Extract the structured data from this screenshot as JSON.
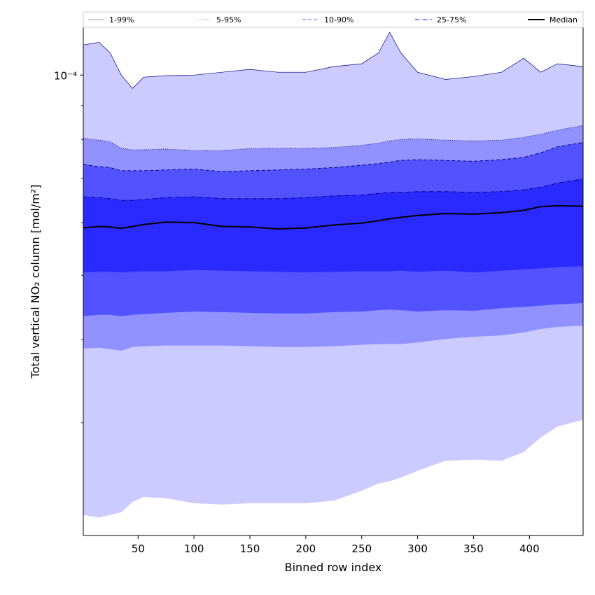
{
  "chart_data": {
    "type": "area",
    "xlabel": "Binned row index",
    "ylabel": "Total vertical NO₂ column [mol/m²]",
    "xlim": [
      1,
      448
    ],
    "ylim": [
      2.03e-05,
      0.000118
    ],
    "yscale": "log",
    "xticks": [
      50,
      100,
      150,
      200,
      250,
      300,
      350,
      400
    ],
    "yticks": [
      {
        "value": 0.0001,
        "label": "10⁻⁴"
      }
    ],
    "yticks_minor": [
      3e-05,
      4e-05,
      5e-05,
      6e-05,
      7e-05,
      8e-05,
      9e-05
    ],
    "legend_position": "top",
    "x": [
      1,
      15,
      25,
      35,
      45,
      55,
      75,
      100,
      125,
      150,
      175,
      200,
      225,
      250,
      265,
      275,
      285,
      300,
      325,
      350,
      375,
      395,
      410,
      425,
      448
    ],
    "bands": [
      {
        "name": "1-99%",
        "color": "#cccbff",
        "edge_color": "#000080",
        "edge_style": "solid",
        "lower": [
          2.18e-05,
          2.16e-05,
          2.18e-05,
          2.2e-05,
          2.28e-05,
          2.32e-05,
          2.31e-05,
          2.27e-05,
          2.26e-05,
          2.27e-05,
          2.27e-05,
          2.27e-05,
          2.29e-05,
          2.37e-05,
          2.43e-05,
          2.45e-05,
          2.48e-05,
          2.54e-05,
          2.63e-05,
          2.64e-05,
          2.63e-05,
          2.71e-05,
          2.85e-05,
          2.96e-05,
          3.03e-05
        ],
        "upper": [
          0.000111,
          0.000112,
          0.000108,
          0.0001,
          9.55e-05,
          9.93e-05,
          9.98e-05,
          0.0001,
          0.000101,
          0.000102,
          0.000101,
          0.000101,
          0.000103,
          0.000104,
          0.000108,
          0.000116,
          0.000108,
          0.000101,
          9.85e-05,
          9.95e-05,
          0.000101,
          0.000106,
          0.000101,
          0.000104,
          0.000103
        ]
      },
      {
        "name": "5-95%",
        "color": "#9191ff",
        "edge_color": "#000080",
        "edge_style": "dotted",
        "lower": [
          3.88e-05,
          3.89e-05,
          3.87e-05,
          3.85e-05,
          3.9e-05,
          3.91e-05,
          3.92e-05,
          3.92e-05,
          3.92e-05,
          3.91e-05,
          3.9e-05,
          3.9e-05,
          3.91e-05,
          3.93e-05,
          3.94e-05,
          3.94e-05,
          3.94e-05,
          3.96e-05,
          4.01e-05,
          4.04e-05,
          4.06e-05,
          4.1e-05,
          4.15e-05,
          4.18e-05,
          4.2e-05
        ],
        "upper": [
          8.04e-05,
          7.98e-05,
          7.94e-05,
          7.76e-05,
          7.72e-05,
          7.72e-05,
          7.74e-05,
          7.7e-05,
          7.7e-05,
          7.75e-05,
          7.76e-05,
          7.76e-05,
          7.78e-05,
          7.84e-05,
          7.9e-05,
          7.96e-05,
          8e-05,
          8.02e-05,
          7.98e-05,
          7.96e-05,
          7.98e-05,
          8.06e-05,
          8.15e-05,
          8.26e-05,
          8.4e-05
        ]
      },
      {
        "name": "10-90%",
        "color": "#5252ff",
        "edge_color": "#000080",
        "edge_style": "dashed",
        "lower": [
          4.34e-05,
          4.36e-05,
          4.36e-05,
          4.34e-05,
          4.36e-05,
          4.37e-05,
          4.39e-05,
          4.41e-05,
          4.4e-05,
          4.39e-05,
          4.38e-05,
          4.38e-05,
          4.4e-05,
          4.41e-05,
          4.43e-05,
          4.44e-05,
          4.43e-05,
          4.41e-05,
          4.43e-05,
          4.42e-05,
          4.46e-05,
          4.48e-05,
          4.5e-05,
          4.52e-05,
          4.54e-05
        ],
        "upper": [
          7.34e-05,
          7.28e-05,
          7.26e-05,
          7.18e-05,
          7.18e-05,
          7.18e-05,
          7.2e-05,
          7.22e-05,
          7.16e-05,
          7.18e-05,
          7.2e-05,
          7.22e-05,
          7.26e-05,
          7.32e-05,
          7.36e-05,
          7.4e-05,
          7.44e-05,
          7.46e-05,
          7.44e-05,
          7.42e-05,
          7.46e-05,
          7.52e-05,
          7.64e-05,
          7.8e-05,
          7.92e-05
        ]
      },
      {
        "name": "25-75%",
        "color": "#2a2aff",
        "edge_color": "#000080",
        "edge_style": "dashdot",
        "lower": [
          5.05e-05,
          5.06e-05,
          5.06e-05,
          5.05e-05,
          5.06e-05,
          5.07e-05,
          5.07e-05,
          5.09e-05,
          5.08e-05,
          5.07e-05,
          5.06e-05,
          5.05e-05,
          5.06e-05,
          5.07e-05,
          5.07e-05,
          5.07e-05,
          5.08e-05,
          5.06e-05,
          5.08e-05,
          5.05e-05,
          5.08e-05,
          5.1e-05,
          5.12e-05,
          5.14e-05,
          5.16e-05
        ],
        "upper": [
          6.56e-05,
          6.54e-05,
          6.52e-05,
          6.48e-05,
          6.48e-05,
          6.5e-05,
          6.54e-05,
          6.56e-05,
          6.52e-05,
          6.52e-05,
          6.52e-05,
          6.54e-05,
          6.58e-05,
          6.6e-05,
          6.64e-05,
          6.66e-05,
          6.66e-05,
          6.68e-05,
          6.68e-05,
          6.66e-05,
          6.68e-05,
          6.72e-05,
          6.78e-05,
          6.88e-05,
          6.98e-05
        ]
      }
    ],
    "median": {
      "name": "Median",
      "color": "#000000",
      "values": [
        5.89e-05,
        5.92e-05,
        5.91e-05,
        5.88e-05,
        5.92e-05,
        5.96e-05,
        6.01e-05,
        6e-05,
        5.92e-05,
        5.91e-05,
        5.87e-05,
        5.89e-05,
        5.95e-05,
        5.99e-05,
        6.04e-05,
        6.08e-05,
        6.11e-05,
        6.15e-05,
        6.19e-05,
        6.18e-05,
        6.21e-05,
        6.26e-05,
        6.34e-05,
        6.36e-05,
        6.35e-05
      ]
    }
  }
}
